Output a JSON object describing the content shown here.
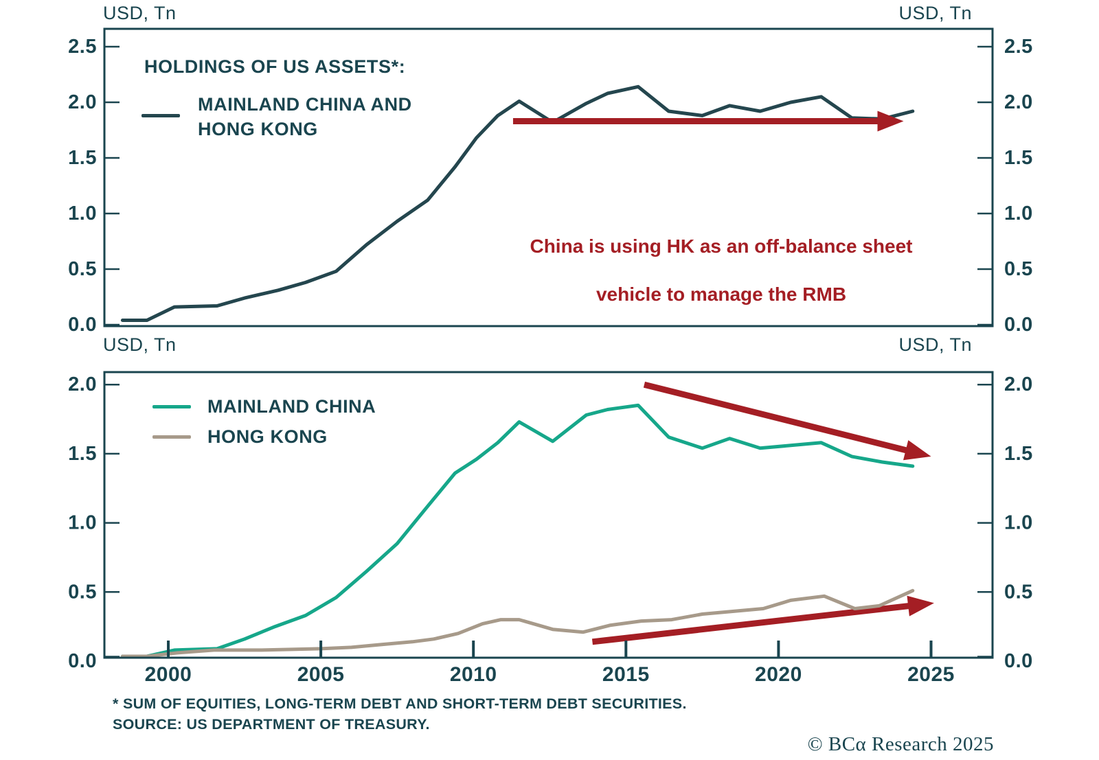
{
  "colors": {
    "ink": "#1a454f",
    "combined_line": "#24464e",
    "china_line": "#16a78a",
    "hongkong_line": "#a79a8a",
    "red": "#a41e24",
    "background": "#ffffff"
  },
  "top_panel": {
    "unit_left": "USD, Tn",
    "unit_right": "USD, Tn",
    "legend_title": "HOLDINGS OF US ASSETS*:",
    "legend_item": "MAINLAND CHINA AND HONG KONG",
    "annotation_line1": "China is using HK as an off-balance sheet",
    "annotation_line2": "vehicle to manage the RMB"
  },
  "bottom_panel": {
    "unit_left": "USD, Tn",
    "unit_right": "USD, Tn",
    "legend_item1": "MAINLAND CHINA",
    "legend_item2": "HONG KONG"
  },
  "footnote_line1": "* SUM OF EQUITIES, LONG-TERM DEBT AND SHORT-TERM DEBT SECURITIES.",
  "footnote_line2": "SOURCE: US DEPARTMENT OF TREASURY.",
  "credit": "© BCα Research 2025",
  "chart_data": [
    {
      "type": "line",
      "panel": "top",
      "title": "HOLDINGS OF US ASSETS*: MAINLAND CHINA AND HONG KONG",
      "ylabel": "USD, Tn",
      "xlim": [
        1997.9,
        2027.0
      ],
      "ylim": [
        0,
        2.66
      ],
      "yticks": [
        0.0,
        0.5,
        1.0,
        1.5,
        2.0,
        2.5
      ],
      "xticks": [
        2000,
        2005,
        2010,
        2015,
        2020,
        2025
      ],
      "x_tick_marks_visible": false,
      "x_tick_labels_visible": false,
      "grid": false,
      "legend_position": "top-left",
      "annotation": "China is using HK as an off-balance sheet vehicle to manage the RMB",
      "series": [
        {
          "name": "MAINLAND CHINA AND HONG KONG",
          "color": "#24464e",
          "points": [
            [
              1998.5,
              0.04
            ],
            [
              1999.3,
              0.04
            ],
            [
              2000.2,
              0.16
            ],
            [
              2001.6,
              0.17
            ],
            [
              2002.5,
              0.24
            ],
            [
              2003.6,
              0.31
            ],
            [
              2004.5,
              0.38
            ],
            [
              2005.5,
              0.48
            ],
            [
              2006.5,
              0.72
            ],
            [
              2007.5,
              0.93
            ],
            [
              2008.5,
              1.12
            ],
            [
              2009.4,
              1.42
            ],
            [
              2010.1,
              1.68
            ],
            [
              2010.8,
              1.88
            ],
            [
              2011.5,
              2.01
            ],
            [
              2012.6,
              1.82
            ],
            [
              2013.7,
              1.99
            ],
            [
              2014.4,
              2.08
            ],
            [
              2015.4,
              2.14
            ],
            [
              2016.4,
              1.92
            ],
            [
              2017.5,
              1.88
            ],
            [
              2018.4,
              1.97
            ],
            [
              2019.4,
              1.92
            ],
            [
              2020.4,
              2.0
            ],
            [
              2021.4,
              2.05
            ],
            [
              2022.4,
              1.86
            ],
            [
              2023.4,
              1.85
            ],
            [
              2024.4,
              1.92
            ]
          ]
        }
      ],
      "arrows": [
        {
          "name": "flat-trend-arrow",
          "from": [
            2011.3,
            1.83
          ],
          "to": [
            2024.1,
            1.83
          ]
        }
      ]
    },
    {
      "type": "line",
      "panel": "bottom",
      "ylabel": "USD, Tn",
      "xlim": [
        1997.9,
        2027.0
      ],
      "ylim": [
        0,
        2.09
      ],
      "yticks": [
        0.0,
        0.5,
        1.0,
        1.5,
        2.0
      ],
      "xticks": [
        2000,
        2005,
        2010,
        2015,
        2020,
        2025
      ],
      "x_tick_marks_visible": true,
      "x_tick_labels_visible": true,
      "grid": false,
      "legend_position": "top-left",
      "series": [
        {
          "name": "MAINLAND CHINA",
          "color": "#16a78a",
          "points": [
            [
              1998.5,
              0.02
            ],
            [
              1999.3,
              0.02
            ],
            [
              2000.2,
              0.08
            ],
            [
              2001.6,
              0.09
            ],
            [
              2002.5,
              0.16
            ],
            [
              2003.5,
              0.25
            ],
            [
              2004.5,
              0.33
            ],
            [
              2005.5,
              0.46
            ],
            [
              2006.5,
              0.65
            ],
            [
              2007.5,
              0.85
            ],
            [
              2008.5,
              1.12
            ],
            [
              2009.4,
              1.36
            ],
            [
              2010.1,
              1.46
            ],
            [
              2010.8,
              1.58
            ],
            [
              2011.5,
              1.73
            ],
            [
              2012.6,
              1.59
            ],
            [
              2013.7,
              1.78
            ],
            [
              2014.4,
              1.82
            ],
            [
              2015.4,
              1.85
            ],
            [
              2016.4,
              1.62
            ],
            [
              2017.5,
              1.54
            ],
            [
              2018.4,
              1.61
            ],
            [
              2019.4,
              1.54
            ],
            [
              2020.4,
              1.56
            ],
            [
              2021.4,
              1.58
            ],
            [
              2022.4,
              1.48
            ],
            [
              2023.4,
              1.44
            ],
            [
              2024.4,
              1.41
            ]
          ]
        },
        {
          "name": "HONG KONG",
          "color": "#a79a8a",
          "points": [
            [
              1998.5,
              0.02
            ],
            [
              1999.3,
              0.02
            ],
            [
              2000.3,
              0.06
            ],
            [
              2001.5,
              0.08
            ],
            [
              2003.0,
              0.08
            ],
            [
              2005.0,
              0.09
            ],
            [
              2006.0,
              0.1
            ],
            [
              2007.0,
              0.12
            ],
            [
              2008.0,
              0.14
            ],
            [
              2008.7,
              0.16
            ],
            [
              2009.5,
              0.2
            ],
            [
              2010.3,
              0.27
            ],
            [
              2010.9,
              0.3
            ],
            [
              2011.5,
              0.3
            ],
            [
              2012.6,
              0.23
            ],
            [
              2013.6,
              0.21
            ],
            [
              2014.5,
              0.26
            ],
            [
              2015.5,
              0.29
            ],
            [
              2016.5,
              0.3
            ],
            [
              2017.5,
              0.34
            ],
            [
              2018.5,
              0.36
            ],
            [
              2019.5,
              0.38
            ],
            [
              2020.4,
              0.44
            ],
            [
              2021.5,
              0.47
            ],
            [
              2022.5,
              0.38
            ],
            [
              2023.3,
              0.4
            ],
            [
              2024.4,
              0.51
            ]
          ]
        }
      ],
      "arrows": [
        {
          "name": "china-down-trend-arrow",
          "from": [
            2015.6,
            2.0
          ],
          "to": [
            2025.0,
            1.48
          ]
        },
        {
          "name": "hongkong-up-trend-arrow",
          "from": [
            2013.9,
            0.14
          ],
          "to": [
            2025.1,
            0.42
          ]
        }
      ]
    }
  ]
}
